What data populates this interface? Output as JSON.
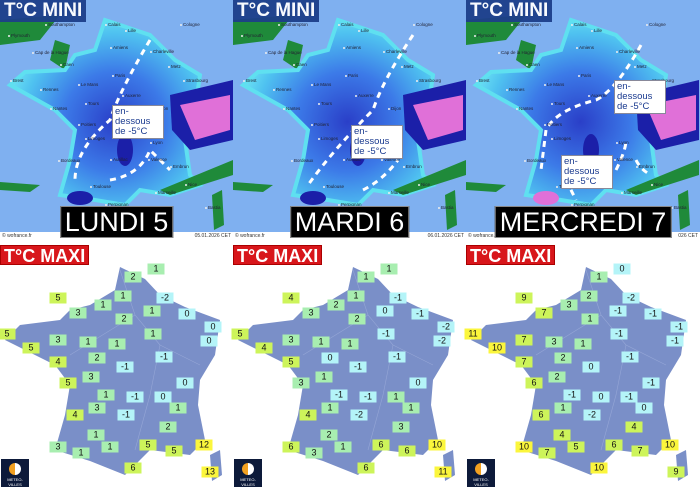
{
  "colors": {
    "cold": "#b4f4f8",
    "mild": "#a8eeb0",
    "warm": "#cdf45a",
    "hot": "#fbf63c",
    "label_mini_bg": "#1d3f8a",
    "label_maxi_bg": "#d8161b",
    "land_maxi": "#7a8fc8"
  },
  "cities": [
    "Plymouth",
    "Southampton",
    "Calais",
    "Lille",
    "Cologne",
    "Amiens",
    "Charleville",
    "Cap de la Hague",
    "Caen",
    "Metz",
    "Brest",
    "Rennes",
    "Le Mans",
    "Paris",
    "Strasbourg",
    "Auxerre",
    "Nantes",
    "Tours",
    "Dijon",
    "Poitiers",
    "Limoges",
    "Lyon",
    "Bordeaux",
    "Aurillac",
    "Valence",
    "Embrun",
    "Toulouse",
    "Marseille",
    "Nice",
    "Perpignan",
    "Bastia"
  ],
  "mini_maps": [
    {
      "title": "T°C MINI",
      "day": "LUNDI 5",
      "source": "© wofrance.fr",
      "date": "05.01.2026 CET",
      "notes": [
        "en-dessous de -5°C"
      ]
    },
    {
      "title": "T°C MINI",
      "day": "MARDI 6",
      "source": "© wofrance.fr",
      "date": "06.01.2026 CET",
      "notes": [
        "en-dessous de -5°C"
      ]
    },
    {
      "title": "T°C MINI",
      "day": "MERCREDI 7",
      "source": "© wofrance.fr",
      "date": "026 CET",
      "notes": [
        "en-dessous de -5°C",
        "en-dessous de -5°C"
      ]
    }
  ],
  "maxi_maps": [
    {
      "title": "T°C MAXI",
      "logo": "METEO-VILLES.COM",
      "values": [
        2,
        1,
        5,
        1,
        1,
        -2,
        3,
        1,
        0,
        2,
        5,
        0,
        0,
        3,
        1,
        1,
        1,
        5,
        -1,
        2,
        4,
        -1,
        3,
        5,
        0,
        1,
        -1,
        0,
        3,
        1,
        4,
        -1,
        2,
        1,
        3,
        1,
        5,
        12,
        1,
        5,
        6,
        13
      ]
    },
    {
      "title": "T°C MAXI",
      "logo": "METEO-VILLES.COM",
      "values": [
        1,
        1,
        4,
        1,
        2,
        -1,
        3,
        0,
        -1,
        2,
        5,
        -2,
        -2,
        3,
        1,
        -1,
        1,
        4,
        -1,
        0,
        5,
        -1,
        1,
        3,
        0,
        -1,
        -1,
        1,
        1,
        1,
        4,
        -2,
        3,
        2,
        6,
        1,
        6,
        10,
        3,
        6,
        6,
        11
      ]
    },
    {
      "title": "T°C MAXI",
      "logo": "METEO-VILLES.COM",
      "values": [
        1,
        0,
        9,
        2,
        3,
        -2,
        7,
        -1,
        -1,
        1,
        11,
        -1,
        -1,
        7,
        3,
        -1,
        1,
        10,
        -1,
        2,
        7,
        0,
        2,
        6,
        -1,
        -1,
        0,
        -1,
        1,
        0,
        6,
        -2,
        4,
        4,
        10,
        5,
        6,
        10,
        7,
        7,
        10,
        9
      ]
    }
  ]
}
